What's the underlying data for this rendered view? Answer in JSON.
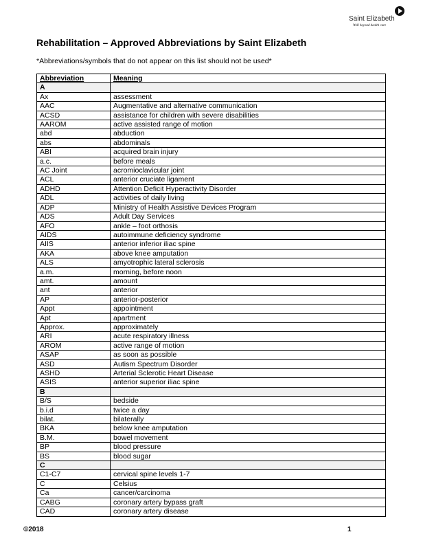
{
  "logo": {
    "name": "Saint Elizabeth",
    "tagline": "Well beyond health care"
  },
  "title": "Rehabilitation – Approved Abbreviations by Saint Elizabeth",
  "subtitle": "*Abbreviations/symbols that do not appear on this list should not be used*",
  "table": {
    "headers": [
      "Abbreviation",
      "Meaning"
    ],
    "sections": [
      {
        "letter": "A",
        "rows": [
          [
            "Ax",
            "assessment"
          ],
          [
            "AAC",
            "Augmentative and alternative communication"
          ],
          [
            "ACSD",
            "assistance for children with severe disabilities"
          ],
          [
            "AAROM",
            "active assisted range of motion"
          ],
          [
            "abd",
            "abduction"
          ],
          [
            "abs",
            "abdominals"
          ],
          [
            "ABI",
            "acquired brain injury"
          ],
          [
            "a.c.",
            "before meals"
          ],
          [
            "AC Joint",
            "acromioclavicular joint"
          ],
          [
            "ACL",
            "anterior cruciate ligament"
          ],
          [
            "ADHD",
            "Attention Deficit Hyperactivity Disorder"
          ],
          [
            "ADL",
            "activities of daily living"
          ],
          [
            "ADP",
            "Ministry of Health Assistive Devices Program"
          ],
          [
            "ADS",
            "Adult Day Services"
          ],
          [
            "AFO",
            "ankle – foot orthosis"
          ],
          [
            "AIDS",
            "autoimmune deficiency syndrome"
          ],
          [
            "AIIS",
            "anterior inferior iliac spine"
          ],
          [
            "AKA",
            "above knee amputation"
          ],
          [
            "ALS",
            "amyotrophic lateral sclerosis"
          ],
          [
            "a.m.",
            "morning, before noon"
          ],
          [
            "amt.",
            "amount"
          ],
          [
            "ant",
            "anterior"
          ],
          [
            "AP",
            "anterior-posterior"
          ],
          [
            "Appt",
            "appointment"
          ],
          [
            "Apt",
            "apartment"
          ],
          [
            "Approx.",
            "approximately"
          ],
          [
            "ARI",
            "acute respiratory illness"
          ],
          [
            "AROM",
            "active range of motion"
          ],
          [
            "ASAP",
            "as soon as possible"
          ],
          [
            "ASD",
            "Autism Spectrum Disorder"
          ],
          [
            "ASHD",
            "Arterial Sclerotic Heart Disease"
          ],
          [
            "ASIS",
            "anterior superior iliac spine"
          ]
        ]
      },
      {
        "letter": "B",
        "rows": [
          [
            "B/S",
            "bedside"
          ],
          [
            "b.i.d",
            "twice a day"
          ],
          [
            "bilat.",
            "bilaterally"
          ],
          [
            "BKA",
            "below knee amputation"
          ],
          [
            "B.M.",
            "bowel movement"
          ],
          [
            "BP",
            "blood pressure"
          ],
          [
            "BS",
            "blood sugar"
          ]
        ]
      },
      {
        "letter": "C",
        "rows": [
          [
            "C1-C7",
            "cervical spine levels 1-7"
          ],
          [
            "C",
            "Celsius"
          ],
          [
            "Ca",
            "cancer/carcinoma"
          ],
          [
            "CABG",
            "coronary artery bypass graft"
          ],
          [
            "CAD",
            "coronary artery disease"
          ]
        ]
      }
    ]
  },
  "footer": {
    "copyright": "©2018",
    "page_number": "1"
  }
}
